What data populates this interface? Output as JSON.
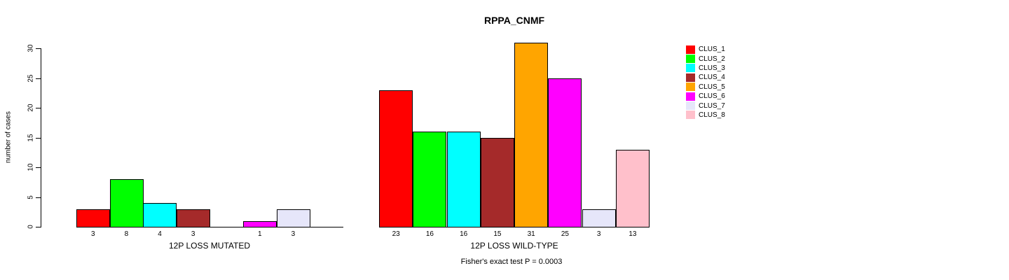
{
  "chart_data": {
    "type": "bar",
    "title": "RPPA_CNMF",
    "ylabel": "number of cases",
    "ylim": [
      0,
      30
    ],
    "yticks": [
      0,
      5,
      10,
      15,
      20,
      25,
      30
    ],
    "grid": false,
    "legend_position": "right",
    "categories": [
      "CLUS_1",
      "CLUS_2",
      "CLUS_3",
      "CLUS_4",
      "CLUS_5",
      "CLUS_6",
      "CLUS_7",
      "CLUS_8"
    ],
    "colors": [
      "#FF0000",
      "#00FF00",
      "#00FFFF",
      "#A52A2A",
      "#FFA500",
      "#FF00FF",
      "#E6E6FA",
      "#FFC0CB"
    ],
    "groups": [
      {
        "label": "12P LOSS MUTATED",
        "values": [
          3,
          8,
          4,
          3,
          0,
          1,
          3,
          0
        ]
      },
      {
        "label": "12P LOSS WILD-TYPE",
        "values": [
          23,
          16,
          16,
          15,
          31,
          25,
          3,
          13
        ]
      }
    ],
    "bar_outline_color": "#000000",
    "annotation": "Fisher's exact test P = 0.0003"
  }
}
